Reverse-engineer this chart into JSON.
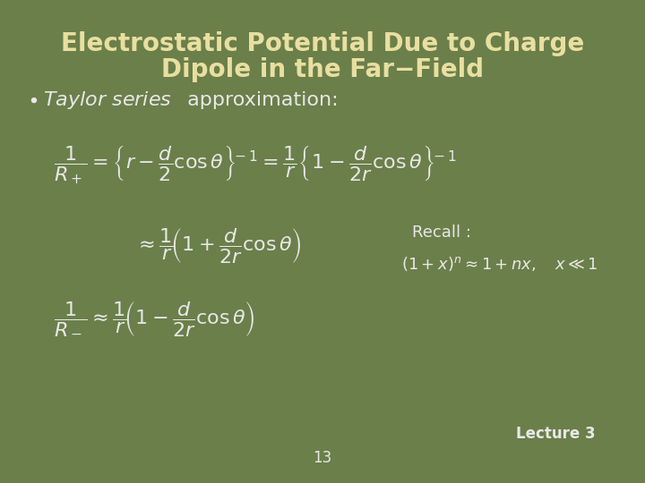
{
  "background_color": "#6b7f4a",
  "title_line1": "Electrostatic Potential Due to Charge",
  "title_line2": "Dipole in the Far−Field",
  "title_color": "#e8dfa0",
  "title_fontsize": 20,
  "bullet_fontsize": 16,
  "formula_color": "#e8e8e8",
  "formula_fontsize": 16,
  "recall_fontsize": 13,
  "page_number": "13",
  "lecture_label": "Lecture 3"
}
